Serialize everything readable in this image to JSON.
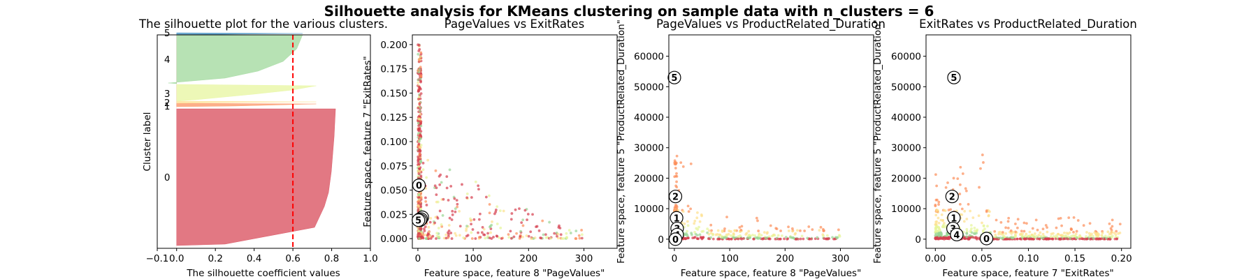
{
  "figure": {
    "suptitle": "Silhouette analysis for KMeans clustering on sample data with n_clusters = 6"
  },
  "colors": [
    "#d53e4f",
    "#fc8d59",
    "#fee08b",
    "#e6f598",
    "#99d594",
    "#3288bd"
  ],
  "chart_data": [
    {
      "type": "area",
      "title": "The silhouette plot for the various clusters.",
      "xlabel": "The silhouette coefficient values",
      "ylabel": "Cluster label",
      "xlim": [
        -0.1,
        1.0
      ],
      "xticks": [
        -0.1,
        0.0,
        0.2,
        0.4,
        0.6,
        0.8,
        1.0
      ],
      "xtick_labels": [
        "−0.1",
        "0.0",
        "0.2",
        "0.4",
        "0.6",
        "0.8",
        "1.0"
      ],
      "average_silhouette": 0.6,
      "clusters": [
        {
          "label": "0",
          "max": 0.82
        },
        {
          "label": "1",
          "max": 0.72
        },
        {
          "label": "2",
          "max": 0.72
        },
        {
          "label": "3",
          "max": 0.72
        },
        {
          "label": "4",
          "max": 0.72
        },
        {
          "label": "5",
          "max": 0.65
        }
      ]
    },
    {
      "type": "scatter",
      "title": "PageValues vs ExitRates",
      "xlabel": "Feature space, feature 8 \"PageValues\"",
      "ylabel": "Feature space, feature 7 \"ExitRates\"",
      "xlim": [
        -10,
        360
      ],
      "ylim": [
        -0.01,
        0.21
      ],
      "xticks": [
        0,
        100,
        200,
        300
      ],
      "xtick_labels": [
        "0",
        "100",
        "200",
        "300"
      ],
      "yticks": [
        0,
        0.025,
        0.05,
        0.075,
        0.1,
        0.125,
        0.15,
        0.175,
        0.2
      ],
      "ytick_labels": [
        "0.000",
        "0.025",
        "0.050",
        "0.075",
        "0.100",
        "0.125",
        "0.150",
        "0.175",
        "0.200"
      ],
      "centers": [
        {
          "label": "0",
          "x": 2,
          "y": 0.055
        },
        {
          "label": "1",
          "x": 8,
          "y": 0.022
        },
        {
          "label": "2",
          "x": 3,
          "y": 0.02
        },
        {
          "label": "3",
          "x": 6,
          "y": 0.02
        },
        {
          "label": "4",
          "x": 4,
          "y": 0.019
        },
        {
          "label": "5",
          "x": 1,
          "y": 0.019
        }
      ]
    },
    {
      "type": "scatter",
      "title": "PageValues vs ProductRelated_Duration",
      "xlabel": "Feature space, feature 8 \"PageValues\"",
      "ylabel": "Feature space, feature 5 \"ProductRelated_Duration\"",
      "xlim": [
        -10,
        360
      ],
      "ylim": [
        -3000,
        67000
      ],
      "xticks": [
        0,
        100,
        200,
        300
      ],
      "xtick_labels": [
        "0",
        "100",
        "200",
        "300"
      ],
      "yticks": [
        0,
        10000,
        20000,
        30000,
        40000,
        50000,
        60000
      ],
      "ytick_labels": [
        "0",
        "10000",
        "20000",
        "30000",
        "40000",
        "50000",
        "60000"
      ],
      "centers": [
        {
          "label": "5",
          "x": 0,
          "y": 53000
        },
        {
          "label": "2",
          "x": 2,
          "y": 14000
        },
        {
          "label": "1",
          "x": 4,
          "y": 7000
        },
        {
          "label": "3",
          "x": 5,
          "y": 3500
        },
        {
          "label": "4",
          "x": 5,
          "y": 1500
        },
        {
          "label": "0",
          "x": 2,
          "y": 0
        }
      ]
    },
    {
      "type": "scatter",
      "title": "ExitRates vs ProductRelated_Duration",
      "xlabel": "Feature space, feature 7 \"ExitRates\"",
      "ylabel": "Feature space, feature 5 \"ProductRelated_Duration\"",
      "xlim": [
        -0.01,
        0.21
      ],
      "ylim": [
        -3000,
        67000
      ],
      "xticks": [
        0.0,
        0.05,
        0.1,
        0.15,
        0.2
      ],
      "xtick_labels": [
        "0.00",
        "0.05",
        "0.10",
        "0.15",
        "0.20"
      ],
      "yticks": [
        0,
        10000,
        20000,
        30000,
        40000,
        50000,
        60000
      ],
      "ytick_labels": [
        "0",
        "10000",
        "20000",
        "30000",
        "40000",
        "50000",
        "60000"
      ],
      "centers": [
        {
          "label": "5",
          "x": 0.02,
          "y": 53000
        },
        {
          "label": "2",
          "x": 0.018,
          "y": 14000
        },
        {
          "label": "1",
          "x": 0.02,
          "y": 7000
        },
        {
          "label": "3",
          "x": 0.019,
          "y": 3500
        },
        {
          "label": "4",
          "x": 0.023,
          "y": 1500
        },
        {
          "label": "0",
          "x": 0.055,
          "y": 200
        }
      ]
    }
  ]
}
